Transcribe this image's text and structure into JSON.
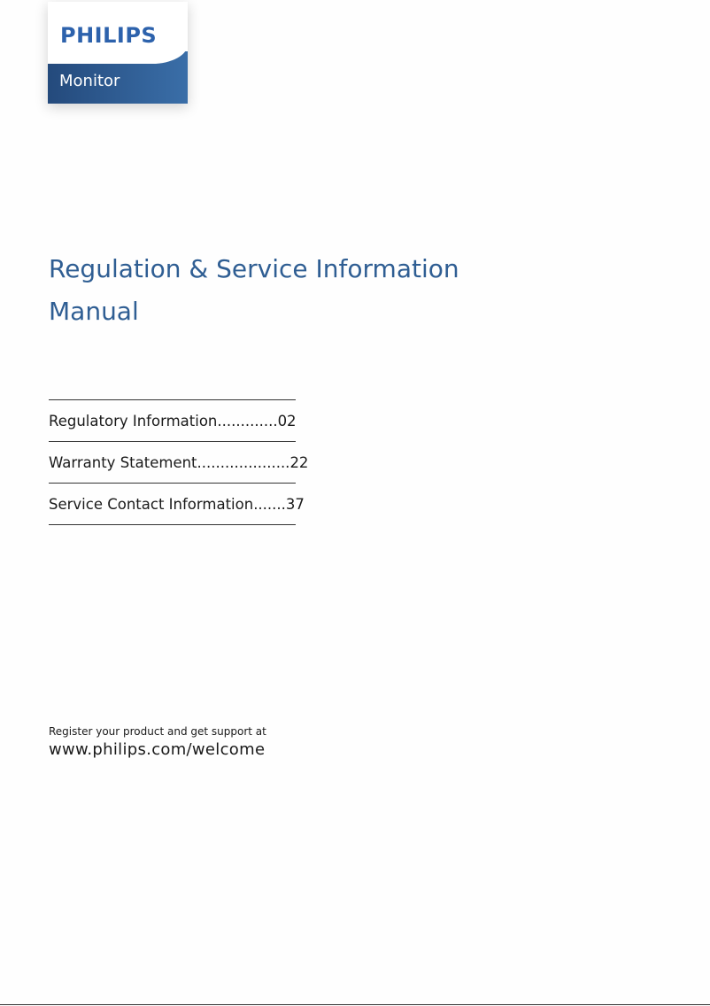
{
  "logo": {
    "brand": "PHILIPS",
    "product": "Monitor"
  },
  "title": {
    "line1": "Regulation & Service Information",
    "line2": "Manual"
  },
  "toc": [
    {
      "label": "Regulatory Information ",
      "leader": ".............",
      "page": "02"
    },
    {
      "label": "Warranty Statement ",
      "leader": "....................",
      "page": "22"
    },
    {
      "label": "Service Contact Information ",
      "leader": ".......",
      "page": "37"
    }
  ],
  "footer": {
    "register_text": "Register your product and get support at",
    "url": "www.philips.com/welcome"
  },
  "colors": {
    "title": "#2f5e93",
    "logo_blue": "#2d62ac"
  }
}
